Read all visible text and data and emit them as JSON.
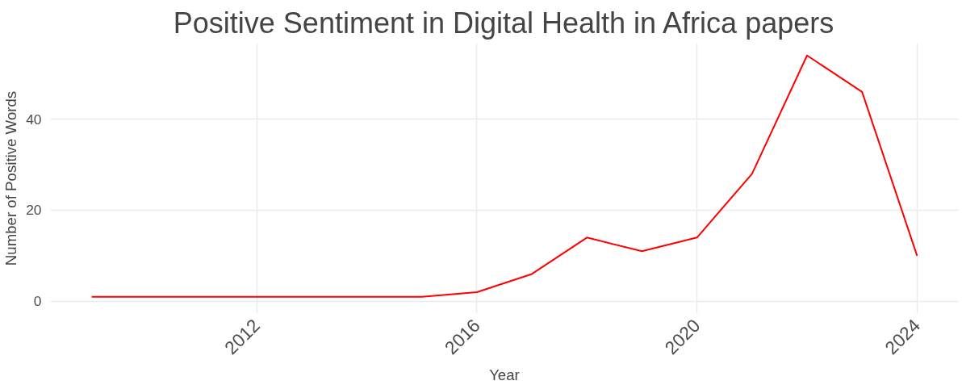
{
  "chart_data": {
    "type": "line",
    "title": "Positive Sentiment in Digital Health in Africa papers",
    "xlabel": "Year",
    "ylabel": "Number of Positive Words",
    "x": [
      2009,
      2010,
      2011,
      2012,
      2013,
      2014,
      2015,
      2016,
      2017,
      2018,
      2019,
      2020,
      2021,
      2022,
      2023,
      2024
    ],
    "series": [
      {
        "color": "#ff0000",
        "values": [
          1,
          1,
          1,
          1,
          1,
          1,
          1,
          2,
          6,
          14,
          11,
          14,
          28,
          54,
          46,
          10
        ]
      }
    ],
    "xlim": [
      2008.25,
      2024.75
    ],
    "ylim": [
      -2.7,
      56.7
    ],
    "xticks": [
      2012,
      2016,
      2020,
      2024
    ],
    "yticks": [
      0,
      20,
      40
    ],
    "grid": true,
    "marker": "none",
    "line_style": "solid"
  }
}
